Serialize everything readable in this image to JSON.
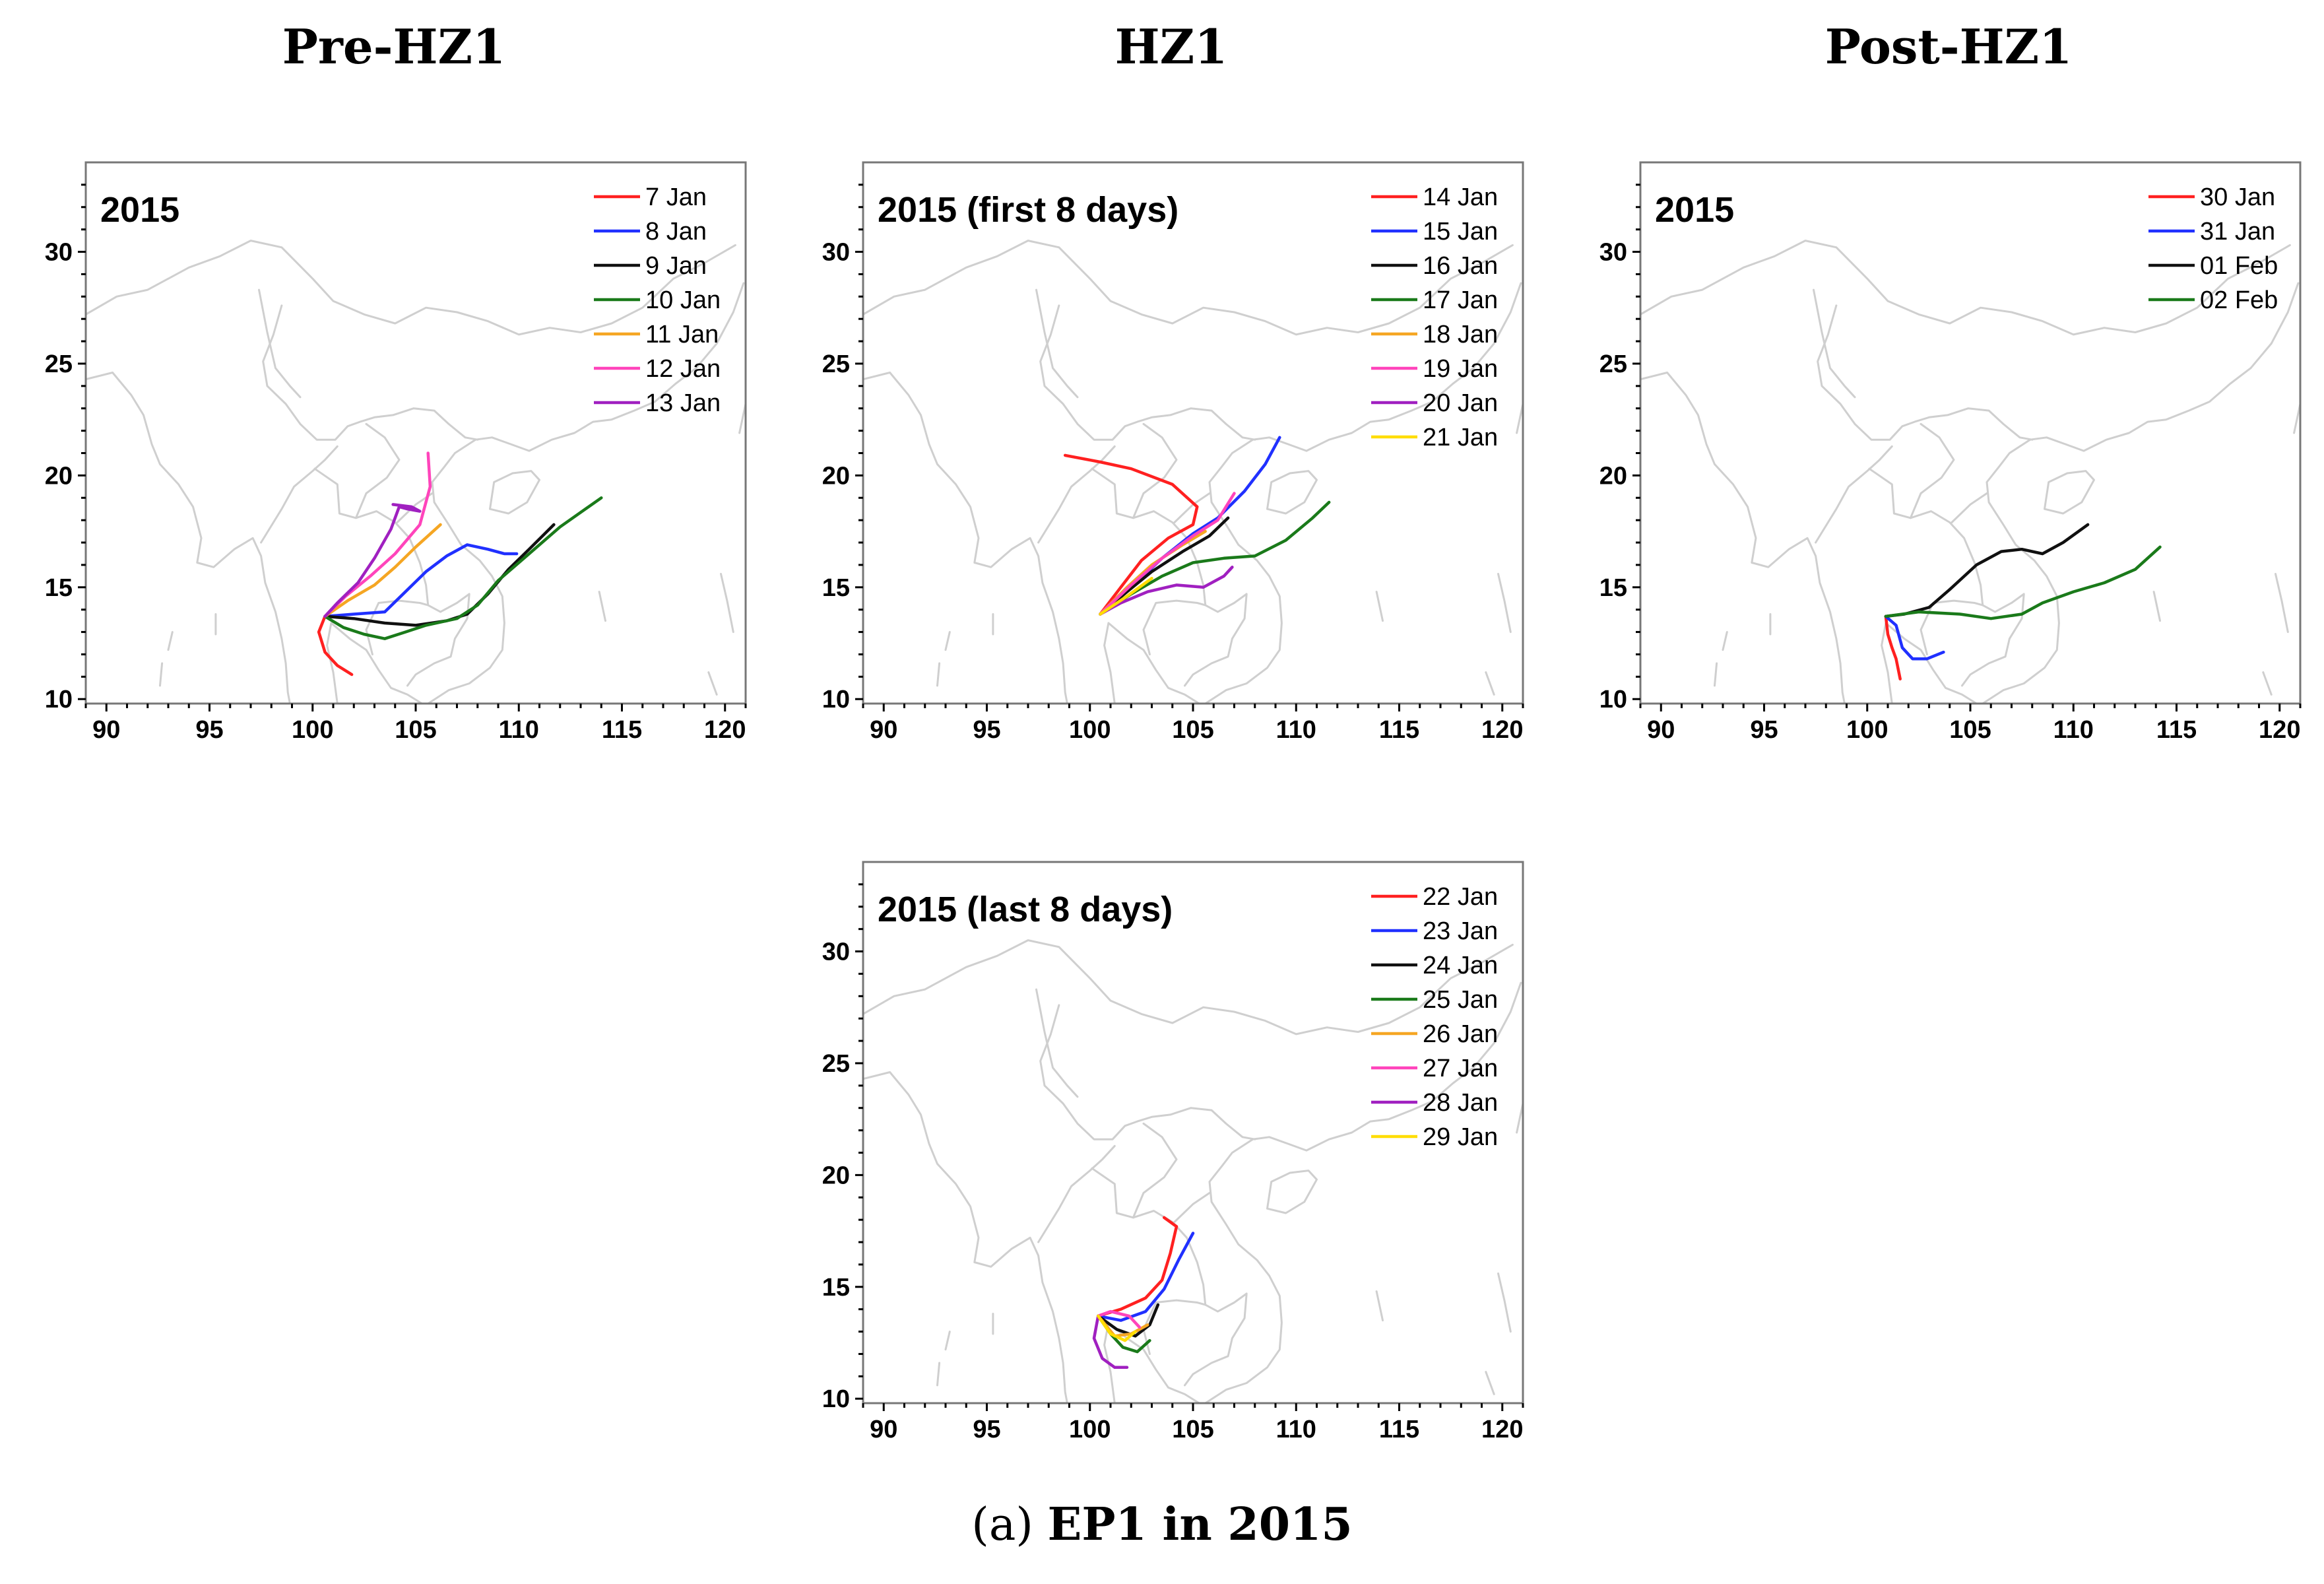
{
  "column_titles": {
    "pre": "Pre-HZ1",
    "hz": "HZ1",
    "post": "Post-HZ1"
  },
  "caption": {
    "label": "(a)",
    "text": "EP1 in 2015"
  },
  "chart_data": [
    {
      "type": "line",
      "title": "2015",
      "xlim": [
        89,
        121
      ],
      "ylim": [
        9.8,
        34
      ],
      "xticks": [
        90,
        95,
        100,
        105,
        110,
        115,
        120
      ],
      "yticks": [
        10,
        15,
        20,
        25,
        30
      ],
      "series": [
        {
          "name": "7 Jan",
          "color": "#ff2020",
          "points": [
            [
              100.6,
              13.7
            ],
            [
              100.3,
              13.0
            ],
            [
              100.6,
              12.1
            ],
            [
              101.2,
              11.5
            ],
            [
              101.9,
              11.1
            ]
          ]
        },
        {
          "name": "8 Jan",
          "color": "#2030ff",
          "points": [
            [
              100.6,
              13.7
            ],
            [
              102.0,
              13.8
            ],
            [
              103.5,
              13.9
            ],
            [
              104.5,
              14.8
            ],
            [
              105.5,
              15.7
            ],
            [
              106.5,
              16.4
            ],
            [
              107.5,
              16.9
            ],
            [
              108.5,
              16.7
            ],
            [
              109.3,
              16.5
            ],
            [
              109.9,
              16.5
            ]
          ]
        },
        {
          "name": "9 Jan",
          "color": "#101010",
          "points": [
            [
              100.6,
              13.7
            ],
            [
              102.0,
              13.6
            ],
            [
              103.5,
              13.4
            ],
            [
              105.0,
              13.3
            ],
            [
              106.5,
              13.5
            ],
            [
              107.5,
              13.8
            ],
            [
              108.5,
              14.7
            ],
            [
              109.5,
              15.8
            ],
            [
              110.5,
              16.7
            ],
            [
              111.7,
              17.8
            ]
          ]
        },
        {
          "name": "10 Jan",
          "color": "#1a7a1a",
          "points": [
            [
              100.6,
              13.7
            ],
            [
              101.5,
              13.2
            ],
            [
              102.5,
              12.9
            ],
            [
              103.5,
              12.7
            ],
            [
              104.5,
              13.0
            ],
            [
              105.5,
              13.3
            ],
            [
              107.0,
              13.6
            ],
            [
              108.0,
              14.2
            ],
            [
              109.0,
              15.3
            ],
            [
              110.5,
              16.5
            ],
            [
              112.0,
              17.7
            ],
            [
              114.0,
              19.0
            ]
          ]
        },
        {
          "name": "11 Jan",
          "color": "#f5a623",
          "points": [
            [
              100.6,
              13.7
            ],
            [
              101.7,
              14.4
            ],
            [
              103.0,
              15.1
            ],
            [
              104.0,
              15.9
            ],
            [
              105.0,
              16.8
            ],
            [
              106.2,
              17.8
            ]
          ]
        },
        {
          "name": "12 Jan",
          "color": "#ff44bb",
          "points": [
            [
              100.6,
              13.7
            ],
            [
              101.6,
              14.6
            ],
            [
              102.8,
              15.5
            ],
            [
              104.0,
              16.5
            ],
            [
              105.2,
              17.8
            ],
            [
              105.7,
              19.5
            ],
            [
              105.6,
              21.0
            ]
          ]
        },
        {
          "name": "13 Jan",
          "color": "#a020c0",
          "points": [
            [
              100.6,
              13.7
            ],
            [
              101.2,
              14.3
            ],
            [
              102.2,
              15.2
            ],
            [
              103.0,
              16.3
            ],
            [
              103.8,
              17.6
            ],
            [
              104.2,
              18.6
            ],
            [
              104.6,
              18.5
            ],
            [
              105.2,
              18.4
            ],
            [
              104.8,
              18.6
            ],
            [
              103.9,
              18.7
            ]
          ]
        }
      ]
    },
    {
      "type": "line",
      "title": "2015 (first 8 days)",
      "xlim": [
        89,
        121
      ],
      "ylim": [
        9.8,
        34
      ],
      "xticks": [
        90,
        95,
        100,
        105,
        110,
        115,
        120
      ],
      "yticks": [
        10,
        15,
        20,
        25,
        30
      ],
      "series": [
        {
          "name": "14 Jan",
          "color": "#ff2020",
          "points": [
            [
              100.5,
              13.8
            ],
            [
              101.5,
              15.0
            ],
            [
              102.5,
              16.2
            ],
            [
              103.8,
              17.2
            ],
            [
              105.0,
              17.8
            ],
            [
              105.2,
              18.6
            ],
            [
              104.0,
              19.6
            ],
            [
              102.0,
              20.3
            ],
            [
              100.5,
              20.6
            ],
            [
              98.8,
              20.9
            ]
          ]
        },
        {
          "name": "15 Jan",
          "color": "#2030ff",
          "points": [
            [
              100.5,
              13.8
            ],
            [
              102.0,
              15.0
            ],
            [
              103.5,
              16.3
            ],
            [
              105.0,
              17.4
            ],
            [
              106.2,
              18.1
            ],
            [
              107.5,
              19.3
            ],
            [
              108.5,
              20.5
            ],
            [
              109.2,
              21.7
            ]
          ]
        },
        {
          "name": "16 Jan",
          "color": "#101010",
          "points": [
            [
              100.5,
              13.8
            ],
            [
              101.8,
              14.8
            ],
            [
              103.0,
              15.7
            ],
            [
              104.5,
              16.6
            ],
            [
              105.8,
              17.3
            ],
            [
              106.7,
              18.1
            ]
          ]
        },
        {
          "name": "17 Jan",
          "color": "#1a7a1a",
          "points": [
            [
              100.5,
              13.8
            ],
            [
              102.0,
              14.7
            ],
            [
              103.5,
              15.5
            ],
            [
              105.0,
              16.1
            ],
            [
              106.5,
              16.3
            ],
            [
              108.0,
              16.4
            ],
            [
              109.5,
              17.1
            ],
            [
              110.8,
              18.1
            ],
            [
              111.6,
              18.8
            ]
          ]
        },
        {
          "name": "18 Jan",
          "color": "#f5a623",
          "points": [
            [
              100.5,
              13.8
            ],
            [
              101.8,
              15.0
            ],
            [
              103.0,
              16.0
            ],
            [
              104.5,
              16.9
            ],
            [
              105.6,
              17.5
            ]
          ]
        },
        {
          "name": "19 Jan",
          "color": "#ff44bb",
          "points": [
            [
              100.5,
              13.8
            ],
            [
              102.0,
              15.1
            ],
            [
              103.5,
              16.3
            ],
            [
              105.0,
              17.3
            ],
            [
              106.2,
              18.0
            ],
            [
              107.0,
              19.2
            ]
          ]
        },
        {
          "name": "20 Jan",
          "color": "#a020c0",
          "points": [
            [
              100.5,
              13.8
            ],
            [
              101.5,
              14.3
            ],
            [
              102.8,
              14.8
            ],
            [
              104.2,
              15.1
            ],
            [
              105.5,
              15.0
            ],
            [
              106.5,
              15.5
            ],
            [
              106.9,
              15.9
            ]
          ]
        },
        {
          "name": "21 Jan",
          "color": "#ffdd00",
          "points": [
            [
              100.5,
              13.8
            ],
            [
              101.8,
              14.6
            ],
            [
              103.0,
              15.4
            ]
          ]
        }
      ]
    },
    {
      "type": "line",
      "title": "2015",
      "xlim": [
        89,
        121
      ],
      "ylim": [
        9.8,
        34
      ],
      "xticks": [
        90,
        95,
        100,
        105,
        110,
        115,
        120
      ],
      "yticks": [
        10,
        15,
        20,
        25,
        30
      ],
      "series": [
        {
          "name": "30 Jan",
          "color": "#ff2020",
          "points": [
            [
              100.9,
              13.7
            ],
            [
              101.0,
              12.9
            ],
            [
              101.2,
              12.3
            ],
            [
              101.4,
              11.8
            ],
            [
              101.6,
              10.9
            ]
          ]
        },
        {
          "name": "31 Jan",
          "color": "#2030ff",
          "points": [
            [
              100.9,
              13.7
            ],
            [
              101.4,
              13.3
            ],
            [
              101.7,
              12.3
            ],
            [
              102.2,
              11.8
            ],
            [
              102.9,
              11.8
            ],
            [
              103.7,
              12.1
            ]
          ]
        },
        {
          "name": "01 Feb",
          "color": "#101010",
          "points": [
            [
              100.9,
              13.7
            ],
            [
              101.8,
              13.8
            ],
            [
              103.0,
              14.1
            ],
            [
              104.0,
              14.9
            ],
            [
              105.3,
              16.0
            ],
            [
              106.5,
              16.6
            ],
            [
              107.5,
              16.7
            ],
            [
              108.5,
              16.5
            ],
            [
              109.5,
              17.0
            ],
            [
              110.7,
              17.8
            ]
          ]
        },
        {
          "name": "02 Feb",
          "color": "#1a7a1a",
          "points": [
            [
              100.9,
              13.7
            ],
            [
              102.5,
              13.9
            ],
            [
              104.5,
              13.8
            ],
            [
              106.0,
              13.6
            ],
            [
              107.5,
              13.8
            ],
            [
              108.5,
              14.3
            ],
            [
              110.0,
              14.8
            ],
            [
              111.5,
              15.2
            ],
            [
              113.0,
              15.8
            ],
            [
              114.2,
              16.8
            ]
          ]
        }
      ]
    },
    {
      "type": "line",
      "title": "2015 (last 8 days)",
      "xlim": [
        89,
        121
      ],
      "ylim": [
        9.8,
        34
      ],
      "xticks": [
        90,
        95,
        100,
        105,
        110,
        115,
        120
      ],
      "yticks": [
        10,
        15,
        20,
        25,
        30
      ],
      "series": [
        {
          "name": "22 Jan",
          "color": "#ff2020",
          "points": [
            [
              100.4,
              13.7
            ],
            [
              101.5,
              14.0
            ],
            [
              102.7,
              14.5
            ],
            [
              103.5,
              15.3
            ],
            [
              103.9,
              16.5
            ],
            [
              104.2,
              17.7
            ],
            [
              103.6,
              18.1
            ]
          ]
        },
        {
          "name": "23 Jan",
          "color": "#2030ff",
          "points": [
            [
              100.4,
              13.7
            ],
            [
              101.5,
              13.5
            ],
            [
              102.7,
              13.9
            ],
            [
              103.6,
              14.9
            ],
            [
              104.3,
              16.2
            ],
            [
              105.0,
              17.4
            ]
          ]
        },
        {
          "name": "24 Jan",
          "color": "#101010",
          "points": [
            [
              100.4,
              13.7
            ],
            [
              101.3,
              13.1
            ],
            [
              102.2,
              12.8
            ],
            [
              102.9,
              13.3
            ],
            [
              103.3,
              14.2
            ]
          ]
        },
        {
          "name": "25 Jan",
          "color": "#1a7a1a",
          "points": [
            [
              100.4,
              13.7
            ],
            [
              101.0,
              12.9
            ],
            [
              101.6,
              12.3
            ],
            [
              102.3,
              12.1
            ],
            [
              102.9,
              12.6
            ]
          ]
        },
        {
          "name": "26 Jan",
          "color": "#f5a623",
          "points": [
            [
              100.4,
              13.7
            ],
            [
              101.2,
              12.8
            ],
            [
              102.0,
              12.9
            ],
            [
              102.8,
              13.3
            ]
          ]
        },
        {
          "name": "27 Jan",
          "color": "#ff44bb",
          "points": [
            [
              100.4,
              13.7
            ],
            [
              101.0,
              13.9
            ],
            [
              101.9,
              13.7
            ],
            [
              102.4,
              13.2
            ]
          ]
        },
        {
          "name": "28 Jan",
          "color": "#a020c0",
          "points": [
            [
              100.4,
              13.7
            ],
            [
              100.2,
              12.7
            ],
            [
              100.6,
              11.8
            ],
            [
              101.2,
              11.4
            ],
            [
              101.8,
              11.4
            ]
          ]
        },
        {
          "name": "29 Jan",
          "color": "#ffdd00",
          "points": [
            [
              100.4,
              13.7
            ],
            [
              101.0,
              12.9
            ],
            [
              101.7,
              12.6
            ],
            [
              102.2,
              13.0
            ]
          ]
        }
      ]
    }
  ]
}
